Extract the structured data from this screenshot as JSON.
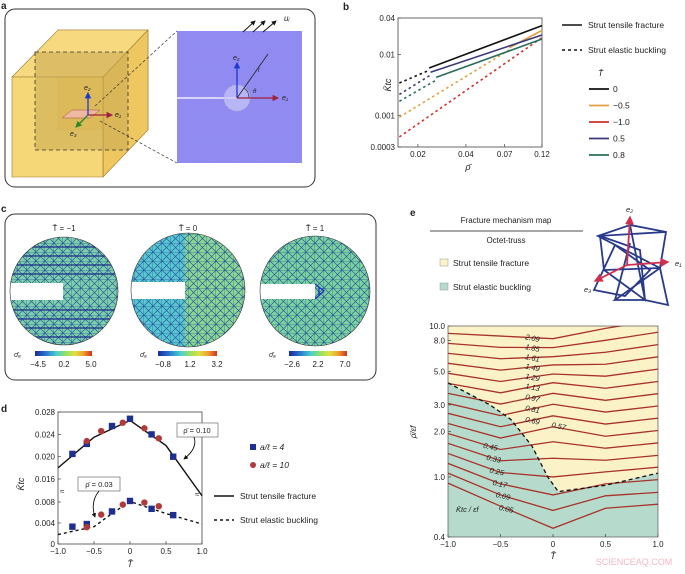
{
  "panels": {
    "a": {
      "label": "a",
      "e1": "e₁",
      "e2": "e₂",
      "e3": "e₃",
      "ui": "uᵢ",
      "r": "r",
      "theta": "θ"
    },
    "b": {
      "label": "b"
    },
    "c": {
      "label": "c",
      "maps": [
        {
          "title": "T̄ = −1",
          "colorbar_label": "σ̄ₐ",
          "ticks": [
            "−4.5",
            "0.2",
            "5.0"
          ]
        },
        {
          "title": "T̄ = 0",
          "colorbar_label": "σ̄ₐ",
          "ticks": [
            "−0.8",
            "1.2",
            "3.2"
          ]
        },
        {
          "title": "T̄ = 1",
          "colorbar_label": "σ̄ₐ",
          "ticks": [
            "−2.6",
            "2.2",
            "7.0"
          ]
        }
      ],
      "colormap": [
        "#1a2a9a",
        "#2a7ad0",
        "#4ad0d0",
        "#9ae060",
        "#e0e040",
        "#f0a030",
        "#d03020"
      ]
    },
    "d": {
      "label": "d"
    },
    "e": {
      "label": "e",
      "title": "Fracture mechanism map",
      "subtitle": "Octet-truss",
      "e1": "e₁",
      "e2": "e₂",
      "e3": "e₃"
    }
  },
  "watermark": "SCIENCEAQ.COM",
  "chart_data": [
    {
      "panel": "b",
      "type": "line",
      "xlabel": "ρ̄",
      "ylabel": "K̄tc",
      "xscale": "log",
      "yscale": "log",
      "xlim": [
        0.015,
        0.12
      ],
      "ylim": [
        0.0003,
        0.04
      ],
      "xticks": [
        {
          "v": 0.02,
          "label": "0.02"
        },
        {
          "v": 0.04,
          "label": "0.04"
        },
        {
          "v": 0.07,
          "label": "0.07"
        },
        {
          "v": 0.12,
          "label": "0.12"
        }
      ],
      "yticks": [
        {
          "v": 0.0003,
          "label": "0.0003"
        },
        {
          "v": 0.001,
          "label": "0.001"
        },
        {
          "v": 0.01,
          "label": "0.01"
        },
        {
          "v": 0.04,
          "label": "0.04"
        }
      ],
      "style_legend": [
        {
          "label": "Strut tensile fracture",
          "style": "solid"
        },
        {
          "label": "Strut elastic buckling",
          "style": "dashed"
        }
      ],
      "legend_title": "T̄",
      "legend_position": "right",
      "series": [
        {
          "name": "0",
          "color": "#111111",
          "dashed": [
            [
              0.0153,
              0.0034
            ],
            [
              0.0235,
              0.0055
            ]
          ],
          "solid": [
            [
              0.0235,
              0.006
            ],
            [
              0.12,
              0.03
            ]
          ]
        },
        {
          "name": "−0.5",
          "color": "#e0a040",
          "dashed": [
            [
              0.0153,
              0.00093
            ],
            [
              0.075,
              0.012
            ]
          ],
          "solid": [
            [
              0.075,
              0.013
            ],
            [
              0.12,
              0.025
            ]
          ]
        },
        {
          "name": "−1.0",
          "color": "#d0302a",
          "dashed": [
            [
              0.0153,
              0.00044
            ],
            [
              0.12,
              0.019
            ]
          ],
          "solid": []
        },
        {
          "name": "0.5",
          "color": "#3a3a7a",
          "dashed": [
            [
              0.0153,
              0.0022
            ],
            [
              0.024,
              0.0046
            ]
          ],
          "solid": [
            [
              0.024,
              0.0051
            ],
            [
              0.12,
              0.021
            ]
          ]
        },
        {
          "name": "0.8",
          "color": "#2a6e5a",
          "dashed": [
            [
              0.0153,
              0.0017
            ],
            [
              0.026,
              0.0038
            ]
          ],
          "solid": [
            [
              0.026,
              0.0042
            ],
            [
              0.12,
              0.018
            ]
          ]
        }
      ]
    },
    {
      "panel": "d",
      "type": "scatter",
      "xlabel": "T̄",
      "ylabel": "K̄tc",
      "xlim": [
        -1.0,
        1.0
      ],
      "ylim": [
        0,
        0.028
      ],
      "y_axis_break": [
        0.008,
        0.016
      ],
      "xticks": [
        {
          "v": -1,
          "label": "−1.0"
        },
        {
          "v": -0.5,
          "label": "−0.5"
        },
        {
          "v": 0,
          "label": "0"
        },
        {
          "v": 0.5,
          "label": "0.5"
        },
        {
          "v": 1,
          "label": "1.0"
        }
      ],
      "yticks": [
        {
          "v": 0,
          "label": "0"
        },
        {
          "v": 0.004,
          "label": "0.004"
        },
        {
          "v": 0.008,
          "label": "0.008"
        },
        {
          "v": 0.016,
          "label": "0.016"
        },
        {
          "v": 0.02,
          "label": "0.020"
        },
        {
          "v": 0.024,
          "label": "0.024"
        },
        {
          "v": 0.028,
          "label": "0.028"
        }
      ],
      "legend": [
        {
          "label": "a/ℓ = 4",
          "marker": "square",
          "color": "#1f2f8f"
        },
        {
          "label": "a/ℓ = 10",
          "marker": "circle",
          "color": "#b03a3a"
        },
        {
          "label": "Strut tensile fracture",
          "style": "solid"
        },
        {
          "label": "Strut elastic buckling",
          "style": "dashed"
        }
      ],
      "annotations": [
        "ρ̄ = 0.10",
        "ρ̄ = 0.03"
      ],
      "curves": [
        {
          "annotation": "ρ̄ = 0.10",
          "style": "solid",
          "points": [
            [
              -1,
              0.018
            ],
            [
              -0.5,
              0.0235
            ],
            [
              0,
              0.0265
            ],
            [
              0.5,
              0.022
            ],
            [
              1,
              0.013
            ]
          ]
        },
        {
          "annotation": "ρ̄ = 0.03",
          "style": "dashed",
          "points": [
            [
              -1,
              0.0018
            ],
            [
              -0.5,
              0.0033
            ],
            [
              -0.25,
              0.0058
            ],
            [
              0,
              0.0081
            ],
            [
              0.5,
              0.0058
            ],
            [
              1,
              0.0038
            ]
          ]
        }
      ],
      "series": [
        {
          "name": "a/ℓ = 4",
          "marker": "square",
          "points": [
            [
              -0.8,
              0.0205
            ],
            [
              -0.6,
              0.0223
            ],
            [
              -0.25,
              0.0255
            ],
            [
              0,
              0.0268
            ],
            [
              0.3,
              0.024
            ],
            [
              0.6,
              0.02
            ],
            [
              -0.8,
              0.0033
            ],
            [
              -0.6,
              0.0038
            ],
            [
              -0.25,
              0.0062
            ],
            [
              0,
              0.0082
            ],
            [
              0.3,
              0.0067
            ],
            [
              0.6,
              0.0055
            ]
          ]
        },
        {
          "name": "a/ℓ = 10",
          "marker": "circle",
          "points": [
            [
              -0.6,
              0.0228
            ],
            [
              -0.4,
              0.0246
            ],
            [
              -0.1,
              0.0261
            ],
            [
              0.2,
              0.0251
            ],
            [
              0.4,
              0.0233
            ],
            [
              -0.6,
              0.0032
            ],
            [
              -0.4,
              0.0056
            ],
            [
              -0.1,
              0.0075
            ],
            [
              0.2,
              0.0079
            ],
            [
              0.4,
              0.0072
            ]
          ]
        }
      ]
    },
    {
      "panel": "e",
      "type": "contour",
      "xlabel": "T̄",
      "ylabel": "ρ̄/εf",
      "inset_label": "K̄tc / εf",
      "xlim": [
        -1.0,
        1.0
      ],
      "ylim": [
        0.4,
        10.0
      ],
      "yscale": "log",
      "xticks": [
        {
          "v": -1,
          "label": "−1.0"
        },
        {
          "v": -0.5,
          "label": "−0.5"
        },
        {
          "v": 0,
          "label": "0"
        },
        {
          "v": 0.5,
          "label": "0.5"
        },
        {
          "v": 1,
          "label": "1.0"
        }
      ],
      "yticks": [
        {
          "v": 0.4,
          "label": "0.4"
        },
        {
          "v": 1,
          "label": "1.0"
        },
        {
          "v": 2,
          "label": "2.0"
        },
        {
          "v": 3,
          "label": "3.0"
        },
        {
          "v": 5,
          "label": "5.0"
        },
        {
          "v": 8,
          "label": "8.0"
        },
        {
          "v": 10,
          "label": "10.0"
        }
      ],
      "regions": [
        {
          "label": "Strut tensile fracture",
          "color": "#fcf2c8"
        },
        {
          "label": "Strut elastic buckling",
          "color": "#b6dbcd"
        }
      ],
      "contour_x": [
        -1,
        -0.5,
        0,
        0.5,
        1
      ],
      "contours": [
        {
          "level": "2.09",
          "y": [
            8.94,
            8.58,
            8.24,
            9.65,
            10.96
          ]
        },
        {
          "level": "1.85",
          "y": [
            7.67,
            7.22,
            7.19,
            8.04,
            9.09
          ]
        },
        {
          "level": "1.61",
          "y": [
            6.59,
            6.07,
            6.26,
            6.7,
            7.53
          ]
        },
        {
          "level": "1.49",
          "y": [
            5.66,
            5.1,
            5.52,
            5.58,
            6.25
          ]
        },
        {
          "level": "1.29",
          "y": [
            4.86,
            4.29,
            4.81,
            4.65,
            5.18
          ]
        },
        {
          "level": "1.13",
          "y": [
            4.17,
            3.61,
            4.21,
            3.87,
            4.29
          ]
        },
        {
          "level": "0.97",
          "y": [
            3.58,
            3.04,
            3.58,
            3.22,
            3.56
          ]
        },
        {
          "level": "0.81",
          "y": [
            3.07,
            2.55,
            3.03,
            2.69,
            2.95
          ]
        },
        {
          "level": "0.69",
          "y": [
            2.64,
            2.15,
            2.54,
            2.24,
            2.45
          ]
        },
        {
          "level": "0.57",
          "y": [
            2.26,
            1.81,
            2.15,
            1.86,
            2.03
          ]
        },
        {
          "level": "0.45",
          "y": [
            1.94,
            1.52,
            1.71,
            1.55,
            1.68
          ]
        },
        {
          "level": "0.33",
          "y": [
            1.67,
            1.28,
            1.33,
            1.29,
            1.39
          ]
        },
        {
          "level": "0.25",
          "y": [
            1.43,
            1.07,
            1.0,
            1.08,
            1.16
          ]
        },
        {
          "level": "0.17",
          "y": [
            1.23,
            0.9,
            0.76,
            0.9,
            0.96
          ]
        },
        {
          "level": "0.09",
          "y": [
            1.06,
            0.76,
            0.6,
            0.75,
            0.79
          ]
        },
        {
          "level": "0.05",
          "y": [
            0.91,
            0.64,
            0.457,
            0.62,
            0.66
          ]
        }
      ],
      "boundary": [
        [
          -1,
          4.2
        ],
        [
          -0.6,
          3.0
        ],
        [
          -0.4,
          2.4
        ],
        [
          -0.2,
          1.6
        ],
        [
          -0.05,
          1.0
        ],
        [
          0.05,
          0.8
        ],
        [
          0.5,
          0.88
        ],
        [
          1,
          1.06
        ]
      ]
    }
  ]
}
